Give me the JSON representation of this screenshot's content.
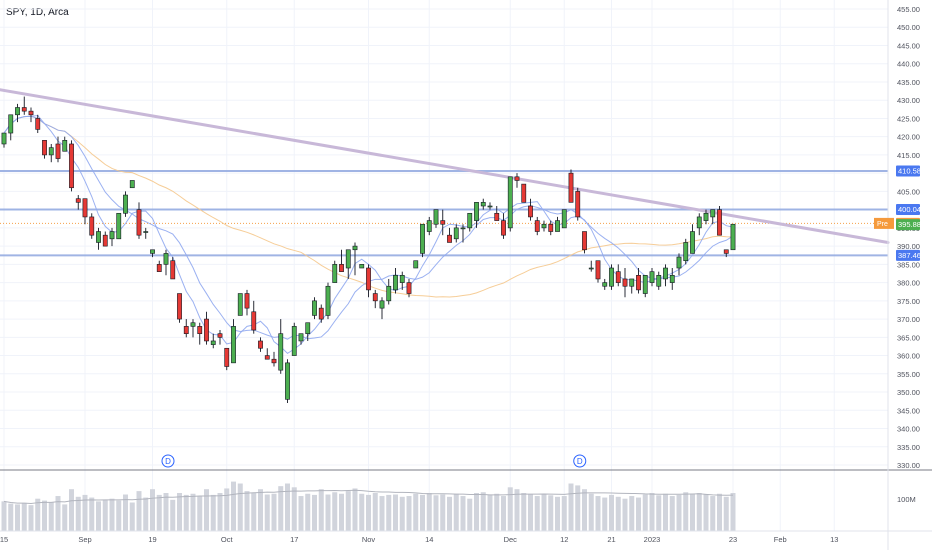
{
  "legend": {
    "symbol": "SPY, 1D, Arca"
  },
  "colors": {
    "up": "#26a69a",
    "up_fill": "#4caf50",
    "down": "#ef5350",
    "trendline": "#c8b8d8",
    "level_line": "#90a8e0",
    "ma_fast": "#90a8f0",
    "ma_slow": "#f5c88c",
    "volume": "#d1d4dc",
    "grid": "#f0f3fa"
  },
  "price_axis": {
    "ticks": [
      "455.00",
      "450.00",
      "445.00",
      "440.00",
      "435.00",
      "430.00",
      "425.00",
      "420.00",
      "415.00",
      "410.00",
      "405.00",
      "400.00",
      "395.00",
      "390.00",
      "385.00",
      "380.00",
      "375.00",
      "370.00",
      "365.00",
      "360.00",
      "355.00",
      "350.00",
      "345.00",
      "340.00",
      "335.00",
      "330.00"
    ],
    "volume_label": "100M"
  },
  "price_labels": [
    {
      "text": "410.58",
      "value": 410.58,
      "kind": "level"
    },
    {
      "text": "400.04",
      "value": 400.04,
      "kind": "level"
    },
    {
      "text": "396.23",
      "value": 396.23,
      "kind": "pre",
      "prefix": "Pre"
    },
    {
      "text": "395.88",
      "value": 395.88,
      "kind": "last"
    },
    {
      "text": "387.46",
      "value": 387.46,
      "kind": "level"
    }
  ],
  "date_axis": {
    "ticks": [
      {
        "label": "15",
        "idx": 0
      },
      {
        "label": "Sep",
        "idx": 12
      },
      {
        "label": "19",
        "idx": 22
      },
      {
        "label": "Oct",
        "idx": 33
      },
      {
        "label": "17",
        "idx": 43
      },
      {
        "label": "Nov",
        "idx": 54
      },
      {
        "label": "14",
        "idx": 63
      },
      {
        "label": "Dec",
        "idx": 75
      },
      {
        "label": "12",
        "idx": 83
      },
      {
        "label": "21",
        "idx": 90
      },
      {
        "label": "2023",
        "idx": 96
      },
      {
        "label": "23",
        "idx": 108
      },
      {
        "label": "Feb",
        "idx": 115
      },
      {
        "label": "13",
        "idx": 123
      }
    ]
  },
  "dividend_markers": [
    {
      "label": "D",
      "idx": 24
    },
    {
      "label": "D",
      "idx": 85
    }
  ],
  "chart_data": {
    "type": "candlestick",
    "symbol": "SPY",
    "interval": "1D",
    "ylim": [
      330,
      457
    ],
    "horizontal_levels": [
      410.58,
      400.04,
      387.46
    ],
    "trendline": {
      "start": {
        "idx": -1,
        "price": 433
      },
      "end": {
        "idx": 130,
        "price": 391
      }
    },
    "candles": [
      [
        418,
        421,
        417,
        421
      ],
      [
        421,
        426,
        419,
        426
      ],
      [
        426,
        429,
        424,
        428
      ],
      [
        428,
        431,
        426,
        427
      ],
      [
        427,
        428,
        424,
        426
      ],
      [
        425,
        426,
        421,
        422
      ],
      [
        419,
        419,
        414,
        415
      ],
      [
        415,
        418,
        413,
        417
      ],
      [
        418,
        420,
        413,
        414
      ],
      [
        416,
        420,
        416,
        419
      ],
      [
        418,
        419,
        405,
        406
      ],
      [
        403,
        404,
        400,
        402
      ],
      [
        403,
        403,
        396,
        398
      ],
      [
        398,
        399,
        392,
        393
      ],
      [
        391,
        395,
        389,
        394
      ],
      [
        393,
        394,
        390,
        390
      ],
      [
        392,
        395,
        390,
        394
      ],
      [
        392,
        399,
        392,
        399
      ],
      [
        399,
        405,
        398,
        404
      ],
      [
        406,
        408,
        406,
        408
      ],
      [
        400,
        402,
        392,
        393
      ],
      [
        394,
        395,
        392,
        394
      ],
      [
        388,
        389,
        387,
        389
      ],
      [
        385,
        386,
        383,
        383
      ],
      [
        385,
        389,
        382,
        388
      ],
      [
        386,
        387,
        381,
        381
      ],
      [
        377,
        377,
        369,
        370
      ],
      [
        368,
        370,
        365,
        366
      ],
      [
        368,
        370,
        365,
        369
      ],
      [
        368,
        369,
        363,
        366
      ],
      [
        370,
        372,
        363,
        364
      ],
      [
        363,
        366,
        362,
        364
      ],
      [
        366,
        367,
        363,
        365
      ],
      [
        362,
        362,
        356,
        357
      ],
      [
        358,
        370,
        358,
        368
      ],
      [
        371,
        377,
        371,
        377
      ],
      [
        377,
        378,
        371,
        373
      ],
      [
        372,
        375,
        366,
        367
      ],
      [
        364,
        365,
        361,
        362
      ],
      [
        360,
        362,
        359,
        359
      ],
      [
        359,
        361,
        357,
        358
      ],
      [
        356,
        370,
        355,
        366
      ],
      [
        348,
        359,
        347,
        358
      ],
      [
        360,
        369,
        360,
        368
      ],
      [
        364,
        366,
        363,
        366
      ],
      [
        366,
        369,
        364,
        369
      ],
      [
        371,
        376,
        370,
        375
      ],
      [
        373,
        374,
        369,
        370
      ],
      [
        371,
        380,
        370,
        379
      ],
      [
        380,
        386,
        380,
        385
      ],
      [
        385,
        389,
        383,
        383
      ],
      [
        384,
        389,
        381,
        389
      ],
      [
        389,
        391,
        382,
        390
      ],
      [
        384,
        385,
        384,
        385
      ],
      [
        384,
        385,
        376,
        378
      ],
      [
        377,
        378,
        373,
        375
      ],
      [
        373,
        376,
        370,
        375
      ],
      [
        375,
        381,
        374,
        379
      ],
      [
        378,
        384,
        377,
        382
      ],
      [
        380,
        383,
        378,
        382
      ],
      [
        380,
        381,
        376,
        377
      ],
      [
        384,
        386,
        384,
        386
      ],
      [
        388,
        396,
        387,
        396
      ],
      [
        394,
        398,
        393,
        397
      ],
      [
        396,
        400,
        395,
        400
      ],
      [
        397,
        400,
        393,
        396
      ],
      [
        393,
        395,
        391,
        391
      ],
      [
        392,
        396,
        391,
        395
      ],
      [
        395,
        396,
        391,
        395
      ],
      [
        395,
        399,
        394,
        399
      ],
      [
        397,
        402,
        395,
        402
      ],
      [
        401,
        403,
        400,
        402
      ],
      [
        401,
        402,
        400,
        401
      ],
      [
        399,
        401,
        397,
        397
      ],
      [
        397,
        399,
        392,
        393
      ],
      [
        395,
        409,
        394,
        409
      ],
      [
        409,
        410,
        406,
        408
      ],
      [
        407,
        407,
        402,
        402
      ],
      [
        401,
        403,
        397,
        398
      ],
      [
        397,
        398,
        393,
        394
      ],
      [
        395,
        397,
        394,
        396
      ],
      [
        396,
        397,
        393,
        394
      ],
      [
        394,
        398,
        394,
        397
      ],
      [
        395,
        400,
        395,
        400
      ],
      [
        410,
        411,
        402,
        402
      ],
      [
        405,
        406,
        397,
        398
      ],
      [
        394,
        394,
        388,
        389
      ],
      [
        384,
        386,
        383,
        384
      ],
      [
        386,
        386,
        380,
        381
      ],
      [
        379,
        381,
        378,
        380
      ],
      [
        379,
        385,
        378,
        384
      ],
      [
        383,
        385,
        379,
        380
      ],
      [
        381,
        384,
        376,
        379
      ],
      [
        379,
        381,
        377,
        381
      ],
      [
        382,
        384,
        377,
        378
      ],
      [
        377,
        382,
        376,
        382
      ],
      [
        380,
        384,
        379,
        383
      ],
      [
        379,
        383,
        378,
        382
      ],
      [
        381,
        385,
        379,
        384
      ],
      [
        380,
        384,
        378,
        382
      ],
      [
        384,
        388,
        382,
        387
      ],
      [
        386,
        392,
        385,
        391
      ],
      [
        388,
        396,
        388,
        394
      ],
      [
        395,
        399,
        393,
        398
      ],
      [
        397,
        400,
        396,
        399
      ],
      [
        398,
        400,
        396,
        400
      ],
      [
        400,
        401,
        393,
        393
      ],
      [
        389,
        389,
        387,
        388
      ],
      [
        389,
        396,
        389,
        396
      ]
    ],
    "volume_millions": [
      78,
      72,
      70,
      74,
      68,
      85,
      80,
      76,
      92,
      70,
      110,
      90,
      95,
      88,
      78,
      82,
      85,
      80,
      96,
      75,
      105,
      88,
      110,
      95,
      100,
      82,
      100,
      95,
      98,
      92,
      110,
      95,
      100,
      112,
      130,
      125,
      105,
      100,
      110,
      96,
      98,
      118,
      125,
      115,
      92,
      98,
      95,
      110,
      96,
      102,
      98,
      105,
      112,
      98,
      95,
      100,
      92,
      95,
      96,
      90,
      92,
      98,
      95,
      100,
      94,
      96,
      90,
      98,
      92,
      85,
      100,
      102,
      95,
      98,
      92,
      115,
      110,
      100,
      96,
      92,
      98,
      94,
      90,
      92,
      125,
      120,
      110,
      98,
      92,
      88,
      95,
      90,
      85,
      92,
      88,
      96,
      100,
      94,
      98,
      92,
      95,
      102,
      98,
      100,
      96,
      92,
      98,
      90,
      100
    ]
  }
}
